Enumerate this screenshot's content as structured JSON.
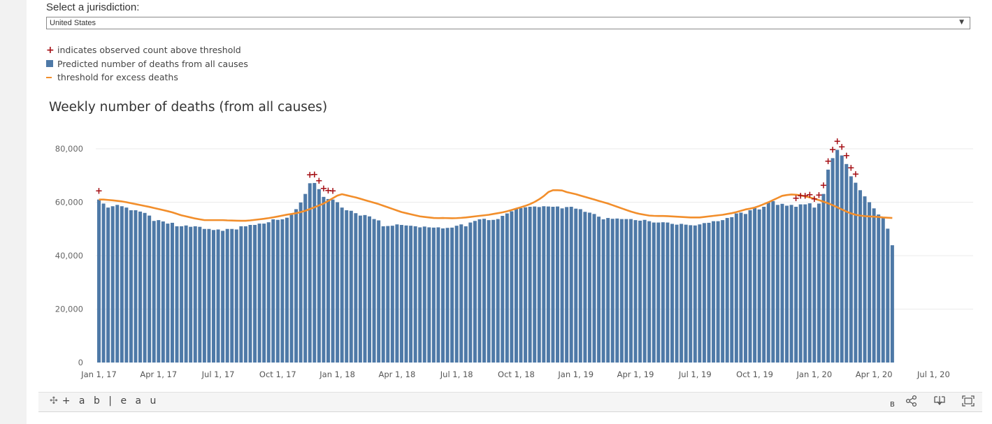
{
  "jurisdiction": {
    "label": "Select a jurisdiction:",
    "selected": "United States"
  },
  "legend": {
    "items": [
      {
        "label": "indicates observed count above threshold",
        "symbol": "plus-icon",
        "color": "#a50f15"
      },
      {
        "label": "Predicted number of deaths from all causes",
        "symbol": "square-icon",
        "color": "#4e79a7"
      },
      {
        "label": "threshold for excess deaths",
        "symbol": "line-icon",
        "color": "#f28e2b"
      }
    ]
  },
  "chart_data": {
    "type": "bar",
    "title": "Weekly number of deaths (from all causes)",
    "xlabel": "",
    "ylabel": "",
    "ylim": [
      0,
      80000
    ],
    "yticks": [
      0,
      20000,
      40000,
      60000,
      80000
    ],
    "ytick_labels": [
      "0",
      "20,000",
      "40,000",
      "60,000",
      "80,000"
    ],
    "xtick_labels": [
      "Jan 1, 17",
      "Apr 1, 17",
      "Jul 1, 17",
      "Oct 1, 17",
      "Jan 1, 18",
      "Apr 1, 18",
      "Jul 1, 18",
      "Oct 1, 18",
      "Jan 1, 19",
      "Apr 1, 19",
      "Jul 1, 19",
      "Oct 1, 19",
      "Jan 1, 20",
      "Apr 1, 20",
      "Jul 1, 20"
    ],
    "xtick_week_index": [
      0,
      13,
      26,
      39,
      52,
      65,
      78,
      91,
      104,
      117,
      130,
      143,
      156,
      169,
      182
    ],
    "grid": true,
    "bar_color": "#4e79a7",
    "threshold_color": "#f28e2b",
    "marker_color": "#a50f15",
    "series": [
      {
        "name": "Predicted number of deaths from all causes",
        "values": [
          61000,
          59500,
          58000,
          58500,
          59000,
          58500,
          58000,
          57000,
          57000,
          56500,
          56000,
          55000,
          53000,
          53300,
          52800,
          52000,
          52300,
          51000,
          51000,
          51300,
          50800,
          51000,
          50800,
          50000,
          50000,
          49600,
          49800,
          49300,
          50000,
          50000,
          49800,
          51000,
          51000,
          51500,
          51500,
          52000,
          52000,
          52500,
          53600,
          53400,
          53600,
          54200,
          55300,
          57400,
          59900,
          63100,
          67100,
          67200,
          64900,
          62000,
          61200,
          61000,
          60000,
          58000,
          57000,
          56800,
          55900,
          55000,
          55200,
          54700,
          53700,
          53200,
          51000,
          51100,
          51200,
          51700,
          51500,
          51300,
          51200,
          51000,
          50600,
          50900,
          50600,
          50500,
          50600,
          50200,
          50400,
          50500,
          51200,
          51700,
          51000,
          52400,
          53000,
          53600,
          53800,
          53300,
          53400,
          53700,
          54900,
          55800,
          56600,
          57500,
          57800,
          58100,
          58300,
          58400,
          58200,
          58500,
          58400,
          58300,
          58400,
          57700,
          58200,
          58300,
          57600,
          57400,
          56400,
          56100,
          55600,
          54600,
          53600,
          54100,
          53800,
          53900,
          53700,
          53700,
          53700,
          53300,
          53100,
          53400,
          52900,
          52400,
          52400,
          52500,
          52400,
          51900,
          51600,
          51900,
          51600,
          51400,
          51300,
          51700,
          52200,
          52300,
          52900,
          52900,
          53300,
          54100,
          54400,
          55800,
          56100,
          55600,
          57000,
          57800,
          57300,
          58300,
          60000,
          60400,
          59000,
          59400,
          58700,
          59000,
          58300,
          59200,
          59200,
          59600,
          58000,
          59500,
          63100,
          72200,
          76500,
          79600,
          77500,
          74300,
          69700,
          67300,
          64500,
          62200,
          60000,
          57700,
          55400,
          54300,
          50100,
          43900
        ]
      },
      {
        "name": "threshold for excess deaths",
        "values": [
          61000,
          61000,
          60850,
          60700,
          60500,
          60300,
          60000,
          59650,
          59300,
          58950,
          58600,
          58250,
          57850,
          57450,
          57050,
          56650,
          56200,
          55650,
          55100,
          54700,
          54300,
          53900,
          53600,
          53300,
          53300,
          53300,
          53300,
          53300,
          53200,
          53150,
          53100,
          53050,
          53050,
          53200,
          53400,
          53600,
          53800,
          54050,
          54350,
          54650,
          55000,
          55350,
          55600,
          55900,
          56300,
          56800,
          57450,
          58100,
          58800,
          59500,
          60500,
          61500,
          62500,
          63000,
          62600,
          62200,
          61800,
          61300,
          60800,
          60300,
          59800,
          59300,
          58700,
          58100,
          57500,
          56900,
          56300,
          55900,
          55500,
          55100,
          54700,
          54500,
          54300,
          54100,
          54050,
          54100,
          54050,
          54000,
          54050,
          54150,
          54300,
          54500,
          54700,
          54900,
          55100,
          55300,
          55600,
          55900,
          56200,
          56600,
          57100,
          57600,
          58100,
          58650,
          59300,
          60100,
          61100,
          62300,
          63800,
          64500,
          64500,
          64400,
          63800,
          63400,
          63000,
          62500,
          62000,
          61500,
          61000,
          60500,
          60000,
          59500,
          58900,
          58300,
          57700,
          57100,
          56500,
          56000,
          55600,
          55300,
          55000,
          54900,
          54850,
          54850,
          54800,
          54700,
          54600,
          54500,
          54400,
          54300,
          54300,
          54300,
          54500,
          54700,
          54900,
          55100,
          55300,
          55600,
          55900,
          56300,
          56800,
          57300,
          57600,
          58000,
          58600,
          59300,
          60000,
          60800,
          61600,
          62400,
          62700,
          62900,
          62800,
          62600,
          62200,
          61800,
          61300,
          60800,
          60200,
          59600,
          58900,
          58100,
          57300,
          56500,
          55800,
          55300,
          55000,
          54800,
          54700,
          54600,
          54500,
          54300,
          54200,
          54100
        ]
      }
    ],
    "above_threshold_week_index": [
      0,
      46,
      47,
      48,
      49,
      50,
      51,
      152,
      153,
      154,
      155,
      156,
      157,
      158,
      159,
      160,
      161,
      162,
      163,
      164,
      165
    ]
  },
  "toolbar": {
    "brand": "+ a b | e a u",
    "b_label": "B",
    "icons": [
      "tableau-glyph-icon",
      "share-icon",
      "download-icon",
      "fullscreen-icon"
    ]
  }
}
